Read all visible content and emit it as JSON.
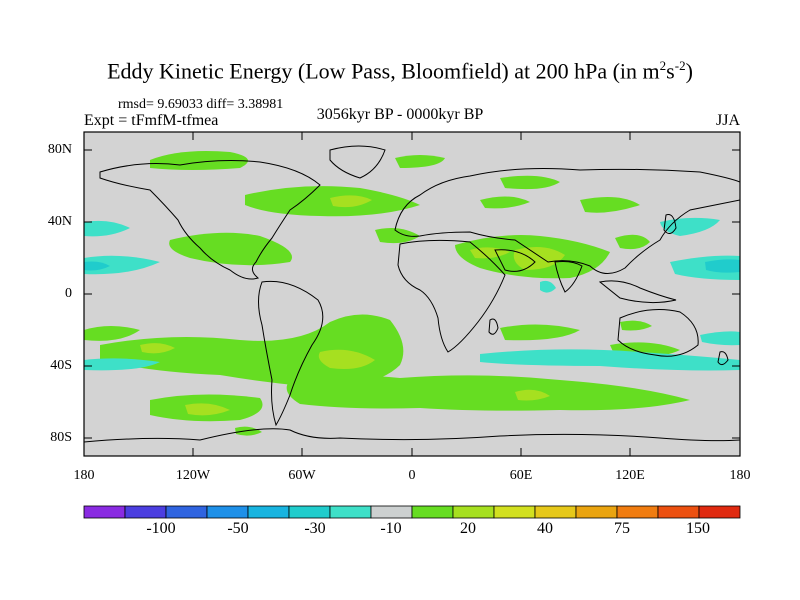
{
  "title": {
    "main": "Eddy Kinetic Energy (Low Pass, Bloomfield) at 200 hPa (in m",
    "sup1": "2",
    "mid": "s",
    "sup2": "-2",
    "end": ")"
  },
  "stats": "rmsd= 9.69033 diff= 3.38981",
  "experiment": "Expt = tFmfM-tfmea",
  "period": "3056kyr BP - 0000kyr BP",
  "season": "JJA",
  "lat_labels": [
    "80N",
    "40N",
    "0",
    "40S",
    "80S"
  ],
  "lon_labels": [
    "180",
    "120W",
    "60W",
    "0",
    "60E",
    "120E",
    "180"
  ],
  "colorbar": {
    "labels": [
      "-100",
      "-50",
      "-30",
      "-10",
      "20",
      "40",
      "75",
      "150"
    ],
    "colors": [
      "#8a2be2",
      "#4b3ee0",
      "#2f64e0",
      "#1e90e8",
      "#18b4e0",
      "#20cccc",
      "#3ee0c8",
      "#ccd0d0",
      "#66dd22",
      "#a6e020",
      "#d2e020",
      "#e6c81a",
      "#eaa410",
      "#f07c10",
      "#ec5010",
      "#e02a10"
    ]
  },
  "map_colors": {
    "ocean_bg": "#d3d3d3",
    "pos_light": "#66dd22",
    "pos_mid": "#a6e020",
    "pos_high": "#d2e020",
    "neg_light": "#3ee0c8",
    "neg_mid": "#20cccc",
    "neg_high": "#18b4e0"
  }
}
